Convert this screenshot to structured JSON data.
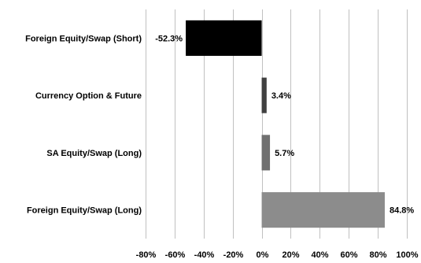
{
  "chart_data": {
    "type": "bar",
    "orientation": "horizontal",
    "categories": [
      "Foreign Equity/Swap (Short)",
      "Currency Option & Future",
      "SA Equity/Swap (Long)",
      "Foreign Equity/Swap (Long)"
    ],
    "values": [
      -52.3,
      3.4,
      5.7,
      84.8
    ],
    "data_labels": [
      "-52.3%",
      "3.4%",
      "5.7%",
      "84.8%"
    ],
    "bar_colors": [
      "#000000",
      "#404040",
      "#707070",
      "#8c8c8c"
    ],
    "xlim": [
      -80,
      100
    ],
    "x_ticks": [
      -80,
      -60,
      -40,
      -20,
      0,
      20,
      40,
      60,
      80,
      100
    ],
    "x_tick_labels": [
      "-80%",
      "-60%",
      "-40%",
      "-20%",
      "0%",
      "20%",
      "40%",
      "60%",
      "80%",
      "100%"
    ],
    "grid": "vertical",
    "grid_color": "#c0c0c0",
    "title": "",
    "xlabel": "",
    "ylabel": ""
  }
}
